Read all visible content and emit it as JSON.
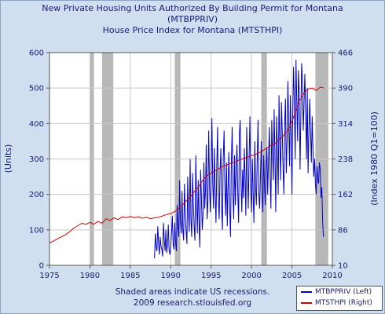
{
  "title": {
    "line1": "New Private Housing Units Authorized By Building Permit for Montana",
    "line2": "(MTBPPRIV)",
    "line3": "House Price Index for Montana (MTSTHPI)"
  },
  "footer": {
    "note": "Shaded areas indicate US recessions.",
    "source": "2009 research.stlouisfed.org"
  },
  "legend": {
    "items": [
      {
        "label": "MTBPPRIV (Left)",
        "color": "#0000cc"
      },
      {
        "label": "MTSTHPI (Right)",
        "color": "#cc0000"
      }
    ]
  },
  "chart_data": {
    "type": "line",
    "ylabel": "(Units)",
    "y2label": "(Index 1980 Q1=100)",
    "xlim": [
      1975,
      2010
    ],
    "ylim": [
      0,
      600
    ],
    "y2lim": [
      10,
      466
    ],
    "xticks": [
      1975,
      1980,
      1985,
      1990,
      1995,
      2000,
      2005,
      2010
    ],
    "yticks": [
      0,
      100,
      200,
      300,
      400,
      500,
      600
    ],
    "y2ticks": [
      10,
      86,
      162,
      238,
      314,
      390,
      466
    ],
    "grid": true,
    "legend_position": "bottom-right",
    "recessions": [
      [
        1980.0,
        1980.5
      ],
      [
        1981.5,
        1982.9
      ],
      [
        1990.5,
        1991.2
      ],
      [
        2001.2,
        2001.9
      ],
      [
        2007.9,
        2009.5
      ]
    ],
    "series": [
      {
        "name": "MTBPPRIV (Left)",
        "axis": "left",
        "color": "#0000cc",
        "x": [
          1988.0,
          1988.1,
          1988.2,
          1988.3,
          1988.4,
          1988.5,
          1988.6,
          1988.7,
          1988.8,
          1988.9,
          1989.0,
          1989.1,
          1989.2,
          1989.3,
          1989.4,
          1989.5,
          1989.6,
          1989.7,
          1989.8,
          1989.9,
          1990.0,
          1990.1,
          1990.2,
          1990.3,
          1990.4,
          1990.5,
          1990.6,
          1990.7,
          1990.8,
          1990.9,
          1991.0,
          1991.1,
          1991.2,
          1991.3,
          1991.4,
          1991.5,
          1991.6,
          1991.7,
          1991.8,
          1991.9,
          1992.0,
          1992.1,
          1992.2,
          1992.3,
          1992.4,
          1992.5,
          1992.6,
          1992.7,
          1992.8,
          1992.9,
          1993.0,
          1993.1,
          1993.2,
          1993.3,
          1993.4,
          1993.5,
          1993.6,
          1993.7,
          1993.8,
          1993.9,
          1994.0,
          1994.1,
          1994.2,
          1994.3,
          1994.4,
          1994.5,
          1994.6,
          1994.7,
          1994.8,
          1994.9,
          1995.0,
          1995.1,
          1995.2,
          1995.3,
          1995.4,
          1995.5,
          1995.6,
          1995.7,
          1995.8,
          1995.9,
          1996.0,
          1996.1,
          1996.2,
          1996.3,
          1996.4,
          1996.5,
          1996.6,
          1996.7,
          1996.8,
          1996.9,
          1997.0,
          1997.1,
          1997.2,
          1997.3,
          1997.4,
          1997.5,
          1997.6,
          1997.7,
          1997.8,
          1997.9,
          1998.0,
          1998.1,
          1998.2,
          1998.3,
          1998.4,
          1998.5,
          1998.6,
          1998.7,
          1998.8,
          1998.9,
          1999.0,
          1999.1,
          1999.2,
          1999.3,
          1999.4,
          1999.5,
          1999.6,
          1999.7,
          1999.8,
          1999.9,
          2000.0,
          2000.1,
          2000.2,
          2000.3,
          2000.4,
          2000.5,
          2000.6,
          2000.7,
          2000.8,
          2000.9,
          2001.0,
          2001.1,
          2001.2,
          2001.3,
          2001.4,
          2001.5,
          2001.6,
          2001.7,
          2001.8,
          2001.9,
          2002.0,
          2002.1,
          2002.2,
          2002.3,
          2002.4,
          2002.5,
          2002.6,
          2002.7,
          2002.8,
          2002.9,
          2003.0,
          2003.1,
          2003.2,
          2003.3,
          2003.4,
          2003.5,
          2003.6,
          2003.7,
          2003.8,
          2003.9,
          2004.0,
          2004.1,
          2004.2,
          2004.3,
          2004.4,
          2004.5,
          2004.6,
          2004.7,
          2004.8,
          2004.9,
          2005.0,
          2005.1,
          2005.2,
          2005.3,
          2005.4,
          2005.5,
          2005.6,
          2005.7,
          2005.8,
          2005.9,
          2006.0,
          2006.1,
          2006.2,
          2006.3,
          2006.4,
          2006.5,
          2006.6,
          2006.7,
          2006.8,
          2006.9,
          2007.0,
          2007.1,
          2007.2,
          2007.3,
          2007.4,
          2007.5,
          2007.6,
          2007.7,
          2007.8,
          2007.9,
          2008.0,
          2008.1,
          2008.2,
          2008.3,
          2008.4,
          2008.5,
          2008.6,
          2008.7,
          2008.8,
          2008.9
        ],
        "y": [
          20,
          90,
          50,
          40,
          110,
          60,
          30,
          80,
          55,
          45,
          25,
          120,
          70,
          40,
          100,
          35,
          60,
          115,
          45,
          30,
          55,
          90,
          140,
          60,
          45,
          120,
          65,
          40,
          170,
          110,
          80,
          240,
          130,
          90,
          210,
          100,
          70,
          230,
          140,
          100,
          60,
          250,
          150,
          95,
          300,
          130,
          80,
          260,
          170,
          110,
          70,
          310,
          180,
          90,
          240,
          120,
          50,
          270,
          190,
          100,
          140,
          290,
          160,
          210,
          340,
          130,
          180,
          380,
          220,
          150,
          250,
          415,
          230,
          160,
          330,
          200,
          120,
          280,
          390,
          180,
          130,
          260,
          330,
          160,
          100,
          300,
          380,
          220,
          140,
          290,
          110,
          220,
          320,
          160,
          80,
          280,
          390,
          200,
          130,
          310,
          170,
          280,
          340,
          200,
          120,
          370,
          410,
          230,
          150,
          270,
          190,
          330,
          250,
          140,
          390,
          270,
          160,
          310,
          420,
          210,
          150,
          300,
          200,
          120,
          350,
          220,
          170,
          290,
          410,
          200,
          160,
          250,
          350,
          200,
          150,
          310,
          230,
          170,
          280,
          330,
          200,
          300,
          390,
          250,
          160,
          410,
          310,
          240,
          440,
          300,
          150,
          420,
          320,
          200,
          480,
          350,
          240,
          460,
          380,
          270,
          200,
          400,
          470,
          260,
          350,
          520,
          390,
          280,
          480,
          360,
          200,
          430,
          560,
          460,
          300,
          580,
          470,
          350,
          550,
          490,
          270,
          420,
          570,
          520,
          380,
          460,
          540,
          420,
          300,
          500,
          260,
          380,
          470,
          380,
          290,
          420,
          330,
          250,
          300,
          230,
          200,
          280,
          240,
          230,
          290,
          270,
          190,
          220,
          120,
          80
        ]
      },
      {
        "name": "MTSTHPI (Right)",
        "axis": "right",
        "color": "#cc0000",
        "x": [
          1975.0,
          1975.5,
          1976.0,
          1976.5,
          1977.0,
          1977.5,
          1978.0,
          1978.5,
          1979.0,
          1979.5,
          1980.0,
          1980.5,
          1981.0,
          1981.5,
          1982.0,
          1982.5,
          1983.0,
          1983.5,
          1984.0,
          1984.5,
          1985.0,
          1985.5,
          1986.0,
          1986.5,
          1987.0,
          1987.5,
          1988.0,
          1988.5,
          1989.0,
          1989.5,
          1990.0,
          1990.5,
          1991.0,
          1991.5,
          1992.0,
          1992.5,
          1993.0,
          1993.5,
          1994.0,
          1994.5,
          1995.0,
          1995.5,
          1996.0,
          1996.5,
          1997.0,
          1997.5,
          1998.0,
          1998.5,
          1999.0,
          1999.5,
          2000.0,
          2000.5,
          2001.0,
          2001.5,
          2002.0,
          2002.5,
          2003.0,
          2003.5,
          2004.0,
          2004.5,
          2005.0,
          2005.5,
          2006.0,
          2006.5,
          2007.0,
          2007.5,
          2008.0,
          2008.5,
          2009.0
        ],
        "y": [
          58,
          62,
          67,
          71,
          76,
          82,
          90,
          95,
          100,
          98,
          102,
          98,
          104,
          100,
          110,
          106,
          112,
          108,
          114,
          112,
          115,
          112,
          114,
          111,
          113,
          110,
          112,
          113,
          116,
          119,
          121,
          125,
          133,
          140,
          150,
          158,
          170,
          180,
          193,
          202,
          208,
          213,
          218,
          222,
          226,
          229,
          232,
          236,
          239,
          242,
          245,
          248,
          252,
          257,
          263,
          268,
          273,
          280,
          289,
          300,
          318,
          342,
          365,
          380,
          388,
          390,
          385,
          392,
          390
        ]
      }
    ]
  }
}
